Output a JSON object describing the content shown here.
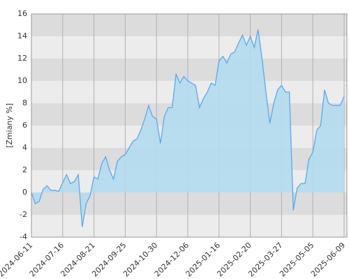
{
  "chart_data": {
    "type": "area",
    "y_label": "[Zmiany %]",
    "categories": [
      "2024-06-11",
      null,
      null,
      null,
      null,
      null,
      null,
      null,
      "2024-07-16",
      null,
      null,
      null,
      null,
      null,
      null,
      null,
      "2024-08-21",
      null,
      null,
      null,
      null,
      null,
      null,
      null,
      "2024-09-25",
      null,
      null,
      null,
      null,
      null,
      null,
      null,
      "2024-10-30",
      null,
      null,
      null,
      null,
      null,
      null,
      null,
      "2024-12-06",
      null,
      null,
      null,
      null,
      null,
      null,
      null,
      "2025-01-16",
      null,
      null,
      null,
      null,
      null,
      null,
      null,
      "2025-02-20",
      null,
      null,
      null,
      null,
      null,
      null,
      null,
      "2025-03-27",
      null,
      null,
      null,
      null,
      null,
      null,
      null,
      "2025-05-05",
      null,
      null,
      null,
      null,
      null,
      null,
      null,
      "2025-06-09"
    ],
    "series": [
      {
        "color": "#5aa9ef",
        "fill": "#b3dcee",
        "values": [
          0,
          -1.0,
          -0.8,
          0.3,
          0.6,
          0.2,
          0.2,
          0.1,
          0.9,
          1.6,
          0.8,
          1.0,
          1.6,
          -3.1,
          -1.0,
          -0.3,
          1.4,
          1.2,
          2.6,
          3.2,
          2.0,
          1.2,
          2.8,
          3.2,
          3.4,
          4.0,
          4.6,
          4.8,
          5.6,
          6.6,
          7.8,
          6.8,
          6.6,
          4.4,
          6.8,
          7.6,
          7.6,
          10.6,
          9.8,
          10.4,
          10.0,
          9.8,
          9.6,
          7.6,
          8.4,
          9.0,
          9.8,
          9.6,
          11.8,
          12.2,
          11.6,
          12.4,
          12.6,
          13.4,
          14.1,
          13.2,
          14.0,
          13.0,
          14.6,
          12.0,
          9.0,
          6.2,
          8.0,
          9.2,
          9.6,
          9.0,
          9.0,
          -1.6,
          0.4,
          0.8,
          0.8,
          3.0,
          3.6,
          5.6,
          6.0,
          9.2,
          8.0,
          7.8,
          7.8,
          7.8,
          8.6
        ]
      }
    ],
    "ylim": [
      -4,
      16
    ],
    "yticks": [
      -4,
      -2,
      0,
      2,
      4,
      6,
      8,
      10,
      12,
      14,
      16
    ],
    "grid": true,
    "band_colors": [
      "#ececec",
      "#dcdcdc"
    ],
    "grid_color": "#b0b0b0"
  }
}
